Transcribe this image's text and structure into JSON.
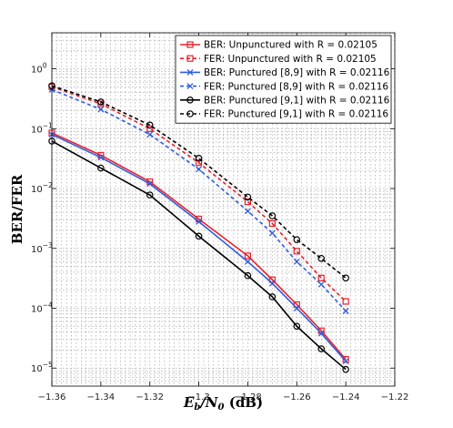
{
  "chart_data": {
    "type": "line",
    "xlabel_parts": [
      "E",
      "b",
      "/N",
      "0",
      " (dB)"
    ],
    "ylabel": "BER/FER",
    "xlim": [
      -1.36,
      -1.22
    ],
    "ylim": [
      5e-06,
      4
    ],
    "yscale": "log",
    "grid": true,
    "legend_position": "top-right",
    "x_ticks": [
      -1.36,
      -1.34,
      -1.32,
      -1.3,
      -1.28,
      -1.26,
      -1.24,
      -1.22
    ],
    "x_tick_labels": [
      "−1.36",
      "−1.34",
      "−1.32",
      "−1.3",
      "−1.28",
      "−1.26",
      "−1.24",
      "−1.22"
    ],
    "y_ticks": [
      1e-05,
      0.0001,
      0.001,
      0.01,
      0.1,
      1
    ],
    "y_tick_mantissa": [
      "10",
      "10",
      "10",
      "10",
      "10",
      "10"
    ],
    "y_tick_exponents": [
      "−5",
      "−4",
      "−3",
      "−2",
      "−1",
      "0"
    ],
    "series": [
      {
        "name": "BER: Unpunctured with R = 0.02105",
        "color": "#e8202a",
        "dash": "solid",
        "marker": "square",
        "x": [
          -1.36,
          -1.34,
          -1.32,
          -1.3,
          -1.28,
          -1.27,
          -1.26,
          -1.25,
          -1.24
        ],
        "y": [
          0.085,
          0.036,
          0.013,
          0.0031,
          0.00075,
          0.0003,
          0.000115,
          4.2e-05,
          1.4e-05
        ]
      },
      {
        "name": "FER: Unpunctured with R = 0.02105",
        "color": "#e8202a",
        "dash": "dashed",
        "marker": "square",
        "x": [
          -1.36,
          -1.34,
          -1.32,
          -1.3,
          -1.28,
          -1.27,
          -1.26,
          -1.25,
          -1.24
        ],
        "y": [
          0.5,
          0.26,
          0.1,
          0.027,
          0.006,
          0.0026,
          0.0009,
          0.00032,
          0.00013
        ]
      },
      {
        "name": "BER: Punctured [8,9] with R = 0.02116",
        "color": "#2f5ce0",
        "dash": "solid",
        "marker": "x",
        "x": [
          -1.36,
          -1.34,
          -1.32,
          -1.3,
          -1.28,
          -1.27,
          -1.26,
          -1.25,
          -1.24
        ],
        "y": [
          0.08,
          0.033,
          0.012,
          0.0028,
          0.0006,
          0.00026,
          0.0001,
          3.8e-05,
          1.3e-05
        ]
      },
      {
        "name": "FER: Punctured [8,9] with R = 0.02116",
        "color": "#2f5ce0",
        "dash": "dashed",
        "marker": "x",
        "x": [
          -1.36,
          -1.34,
          -1.32,
          -1.3,
          -1.28,
          -1.27,
          -1.26,
          -1.25,
          -1.24
        ],
        "y": [
          0.45,
          0.21,
          0.08,
          0.021,
          0.0042,
          0.0018,
          0.0006,
          0.00025,
          9e-05
        ]
      },
      {
        "name": "BER: Punctured [9,1] with R = 0.02116",
        "color": "#000000",
        "dash": "solid",
        "marker": "circle",
        "x": [
          -1.36,
          -1.34,
          -1.32,
          -1.3,
          -1.28,
          -1.27,
          -1.26,
          -1.25,
          -1.24
        ],
        "y": [
          0.062,
          0.022,
          0.0078,
          0.0016,
          0.00035,
          0.000155,
          5e-05,
          2.1e-05,
          9.5e-06
        ]
      },
      {
        "name": "FER: Punctured [9,1] with R = 0.02116",
        "color": "#000000",
        "dash": "dashed",
        "marker": "circle",
        "x": [
          -1.36,
          -1.34,
          -1.32,
          -1.3,
          -1.28,
          -1.27,
          -1.26,
          -1.25,
          -1.24
        ],
        "y": [
          0.52,
          0.28,
          0.115,
          0.032,
          0.0072,
          0.0035,
          0.0014,
          0.00068,
          0.00032
        ]
      }
    ]
  }
}
